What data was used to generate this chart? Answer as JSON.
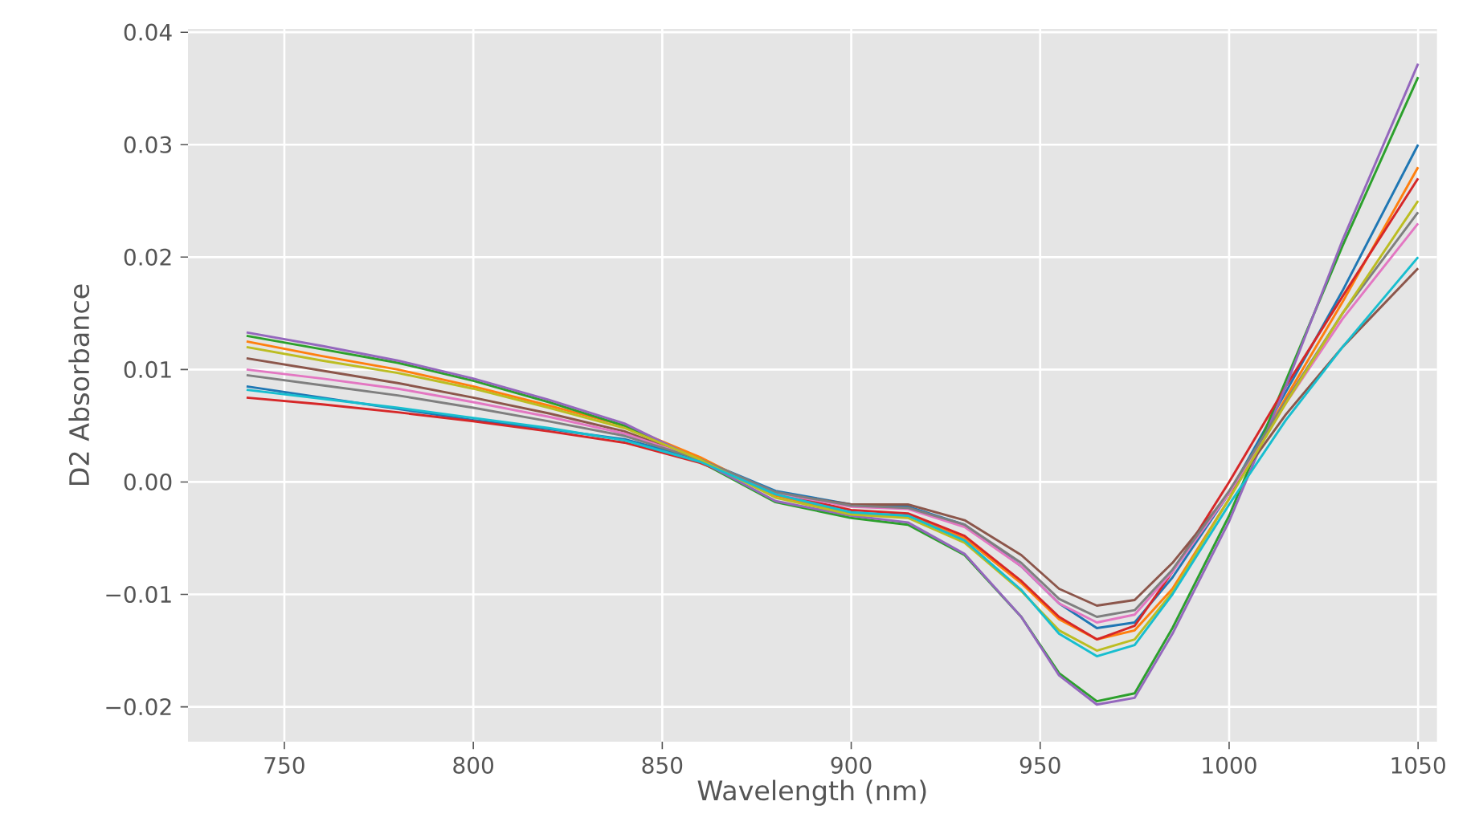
{
  "chart_data": {
    "type": "line",
    "xlabel": "Wavelength (nm)",
    "ylabel": "D2 Absorbance",
    "grid": true,
    "xlim": [
      724.5,
      1055
    ],
    "ylim": [
      -0.0231,
      0.0403
    ],
    "xticks": [
      750,
      800,
      850,
      900,
      950,
      1000,
      1050
    ],
    "yticks": [
      {
        "value": -0.02,
        "label": "−0.02"
      },
      {
        "value": -0.01,
        "label": "−0.01"
      },
      {
        "value": 0,
        "label": "0.00"
      },
      {
        "value": 0.01,
        "label": "0.01"
      },
      {
        "value": 0.02,
        "label": "0.02"
      },
      {
        "value": 0.03,
        "label": "0.03"
      },
      {
        "value": 0.04,
        "label": "0.04"
      }
    ],
    "x": [
      740,
      760,
      780,
      800,
      820,
      840,
      860,
      880,
      900,
      915,
      930,
      945,
      955,
      965,
      975,
      985,
      1000,
      1015,
      1030,
      1050
    ],
    "series": [
      {
        "color": "#1f77b4",
        "values": [
          0.0085,
          0.0075,
          0.0065,
          0.0055,
          0.0047,
          0.0038,
          0.002,
          -0.0008,
          -0.002,
          -0.0022,
          -0.0038,
          -0.0075,
          -0.0108,
          -0.013,
          -0.0125,
          -0.0085,
          -0.001,
          0.008,
          0.017,
          0.03
        ]
      },
      {
        "color": "#ff7f0e",
        "values": [
          0.0125,
          0.0112,
          0.01,
          0.0085,
          0.0068,
          0.005,
          0.0022,
          -0.0012,
          -0.0028,
          -0.003,
          -0.005,
          -0.009,
          -0.0122,
          -0.014,
          -0.0132,
          -0.0095,
          -0.0015,
          0.0075,
          0.016,
          0.028
        ]
      },
      {
        "color": "#2ca02c",
        "values": [
          0.013,
          0.0118,
          0.0106,
          0.009,
          0.0071,
          0.005,
          0.0018,
          -0.0018,
          -0.0032,
          -0.0038,
          -0.0065,
          -0.012,
          -0.017,
          -0.0195,
          -0.0188,
          -0.013,
          -0.003,
          0.009,
          0.021,
          0.036
        ]
      },
      {
        "color": "#d62728",
        "values": [
          0.0075,
          0.0069,
          0.0062,
          0.0054,
          0.0045,
          0.0035,
          0.0017,
          -0.001,
          -0.0025,
          -0.0028,
          -0.0048,
          -0.0088,
          -0.012,
          -0.014,
          -0.0128,
          -0.008,
          0.0,
          0.0085,
          0.0165,
          0.027
        ]
      },
      {
        "color": "#9467bd",
        "values": [
          0.0133,
          0.0121,
          0.0108,
          0.0092,
          0.0073,
          0.0052,
          0.0019,
          -0.0017,
          -0.003,
          -0.0036,
          -0.0064,
          -0.012,
          -0.0172,
          -0.0198,
          -0.0192,
          -0.0135,
          -0.0035,
          0.0085,
          0.0215,
          0.0372
        ]
      },
      {
        "color": "#8c564b",
        "values": [
          0.011,
          0.0099,
          0.0088,
          0.0075,
          0.0061,
          0.0045,
          0.002,
          -0.001,
          -0.002,
          -0.002,
          -0.0034,
          -0.0065,
          -0.0095,
          -0.011,
          -0.0105,
          -0.0072,
          -0.001,
          0.006,
          0.012,
          0.019
        ]
      },
      {
        "color": "#e377c2",
        "values": [
          0.01,
          0.0092,
          0.0083,
          0.0071,
          0.0058,
          0.0043,
          0.002,
          -0.001,
          -0.0022,
          -0.0024,
          -0.004,
          -0.0075,
          -0.0108,
          -0.0125,
          -0.0118,
          -0.008,
          -0.001,
          0.007,
          0.0145,
          0.023
        ]
      },
      {
        "color": "#7f7f7f",
        "values": [
          0.0095,
          0.0086,
          0.0077,
          0.0066,
          0.0054,
          0.0041,
          0.002,
          -0.0009,
          -0.0021,
          -0.0023,
          -0.0038,
          -0.0072,
          -0.0104,
          -0.012,
          -0.0114,
          -0.0078,
          -0.0008,
          0.0072,
          0.015,
          0.024
        ]
      },
      {
        "color": "#bcbd22",
        "values": [
          0.012,
          0.0108,
          0.0097,
          0.0083,
          0.0066,
          0.0048,
          0.002,
          -0.0014,
          -0.0029,
          -0.0032,
          -0.0054,
          -0.0097,
          -0.0132,
          -0.015,
          -0.014,
          -0.0098,
          -0.0015,
          0.007,
          0.015,
          0.025
        ]
      },
      {
        "color": "#17becf",
        "values": [
          0.0082,
          0.0074,
          0.0066,
          0.0057,
          0.0048,
          0.0037,
          0.0018,
          -0.0011,
          -0.0027,
          -0.003,
          -0.0052,
          -0.0096,
          -0.0135,
          -0.0155,
          -0.0145,
          -0.01,
          -0.002,
          0.0055,
          0.012,
          0.02
        ]
      }
    ]
  }
}
